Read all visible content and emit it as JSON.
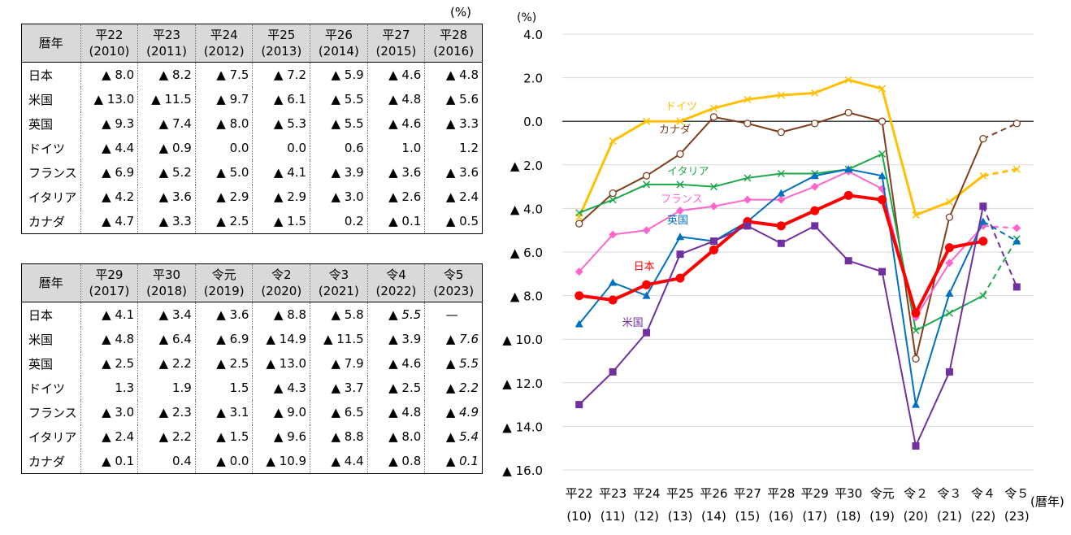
{
  "unit": "(%)",
  "tables": [
    {
      "header_label": "暦年",
      "years": [
        {
          "era": "平22",
          "year": "(2010)"
        },
        {
          "era": "平23",
          "year": "(2011)"
        },
        {
          "era": "平24",
          "year": "(2012)"
        },
        {
          "era": "平25",
          "year": "(2013)"
        },
        {
          "era": "平26",
          "year": "(2014)"
        },
        {
          "era": "平27",
          "year": "(2015)"
        },
        {
          "era": "平28",
          "year": "(2016)"
        }
      ],
      "rows": [
        {
          "country": "日本",
          "values": [
            "▲ 8.0",
            "▲ 8.2",
            "▲ 7.5",
            "▲ 7.2",
            "▲ 5.9",
            "▲ 4.6",
            "▲ 4.8"
          ]
        },
        {
          "country": "米国",
          "values": [
            "▲ 13.0",
            "▲ 11.5",
            "▲ 9.7",
            "▲ 6.1",
            "▲ 5.5",
            "▲ 4.8",
            "▲ 5.6"
          ]
        },
        {
          "country": "英国",
          "values": [
            "▲ 9.3",
            "▲ 7.4",
            "▲ 8.0",
            "▲ 5.3",
            "▲ 5.5",
            "▲ 4.6",
            "▲ 3.3"
          ]
        },
        {
          "country": "ドイツ",
          "values": [
            "▲ 4.4",
            "▲ 0.9",
            "0.0",
            "0.0",
            "0.6",
            "1.0",
            "1.2"
          ]
        },
        {
          "country": "フランス",
          "values": [
            "▲ 6.9",
            "▲ 5.2",
            "▲ 5.0",
            "▲ 4.1",
            "▲ 3.9",
            "▲ 3.6",
            "▲ 3.6"
          ]
        },
        {
          "country": "イタリア",
          "values": [
            "▲ 4.2",
            "▲ 3.6",
            "▲ 2.9",
            "▲ 2.9",
            "▲ 3.0",
            "▲ 2.6",
            "▲ 2.4"
          ]
        },
        {
          "country": "カナダ",
          "values": [
            "▲ 4.7",
            "▲ 3.3",
            "▲ 2.5",
            "▲ 1.5",
            "0.2",
            "▲ 0.1",
            "▲ 0.5"
          ]
        }
      ]
    },
    {
      "header_label": "暦年",
      "years": [
        {
          "era": "平29",
          "year": "(2017)"
        },
        {
          "era": "平30",
          "year": "(2018)"
        },
        {
          "era": "令元",
          "year": "(2019)"
        },
        {
          "era": "令2",
          "year": "(2020)"
        },
        {
          "era": "令3",
          "year": "(2021)"
        },
        {
          "era": "令4",
          "year": "(2022)"
        },
        {
          "era": "令5",
          "year": "(2023)"
        }
      ],
      "rows": [
        {
          "country": "日本",
          "values": [
            "▲ 4.1",
            "▲ 3.4",
            "▲ 3.6",
            "▲ 8.8",
            "▲ 5.8",
            "▲ 5.5",
            "—"
          ]
        },
        {
          "country": "米国",
          "values": [
            "▲ 4.8",
            "▲ 6.4",
            "▲ 6.9",
            "▲ 14.9",
            "▲ 11.5",
            "▲ 3.9",
            "▲ 7.6"
          ]
        },
        {
          "country": "英国",
          "values": [
            "▲ 2.5",
            "▲ 2.2",
            "▲ 2.5",
            "▲ 13.0",
            "▲ 7.9",
            "▲ 4.6",
            "▲ 5.5"
          ]
        },
        {
          "country": "ドイツ",
          "values": [
            "1.3",
            "1.9",
            "1.5",
            "▲ 4.3",
            "▲ 3.7",
            "▲ 2.5",
            "▲ 2.2"
          ]
        },
        {
          "country": "フランス",
          "values": [
            "▲ 3.0",
            "▲ 2.3",
            "▲ 3.1",
            "▲ 9.0",
            "▲ 6.5",
            "▲ 4.8",
            "▲ 4.9"
          ]
        },
        {
          "country": "イタリア",
          "values": [
            "▲ 2.4",
            "▲ 2.2",
            "▲ 1.5",
            "▲ 9.6",
            "▲ 8.8",
            "▲ 8.0",
            "▲ 5.4"
          ]
        },
        {
          "country": "カナダ",
          "values": [
            "▲ 0.1",
            "0.4",
            "▲ 0.0",
            "▲ 10.9",
            "▲ 4.4",
            "▲ 0.8",
            "▲ 0.1"
          ]
        }
      ],
      "italic_cells": [
        [
          0,
          5
        ],
        [
          1,
          6
        ],
        [
          2,
          6
        ],
        [
          3,
          6
        ],
        [
          4,
          6
        ],
        [
          5,
          6
        ],
        [
          6,
          6
        ]
      ]
    }
  ],
  "chart_data": {
    "type": "line",
    "ylabel": "(%)",
    "xlabel": "(暦年)",
    "ylim": [
      -16,
      4
    ],
    "yticks": [
      {
        "value": 4,
        "label": "4.0"
      },
      {
        "value": 2,
        "label": "2.0"
      },
      {
        "value": 0,
        "label": "0.0"
      },
      {
        "value": -2,
        "label": "▲ 2.0"
      },
      {
        "value": -4,
        "label": "▲ 4.0"
      },
      {
        "value": -6,
        "label": "▲ 6.0"
      },
      {
        "value": -8,
        "label": "▲ 8.0"
      },
      {
        "value": -10,
        "label": "▲ 10.0"
      },
      {
        "value": -12,
        "label": "▲ 12.0"
      },
      {
        "value": -14,
        "label": "▲ 14.0"
      },
      {
        "value": -16,
        "label": "▲ 16.0"
      }
    ],
    "categories": [
      {
        "era": "平22",
        "year": "(10)"
      },
      {
        "era": "平23",
        "year": "(11)"
      },
      {
        "era": "平24",
        "year": "(12)"
      },
      {
        "era": "平25",
        "year": "(13)"
      },
      {
        "era": "平26",
        "year": "(14)"
      },
      {
        "era": "平27",
        "year": "(15)"
      },
      {
        "era": "平28",
        "year": "(16)"
      },
      {
        "era": "平29",
        "year": "(17)"
      },
      {
        "era": "平30",
        "year": "(18)"
      },
      {
        "era": "令元",
        "year": "(19)"
      },
      {
        "era": "令２",
        "year": "(20)"
      },
      {
        "era": "令３",
        "year": "(21)"
      },
      {
        "era": "令４",
        "year": "(22)"
      },
      {
        "era": "令５",
        "year": "(23)"
      }
    ],
    "series": [
      {
        "name": "ドイツ",
        "color": "#ffc000",
        "marker": "x",
        "width": 3,
        "values": [
          -4.4,
          -0.9,
          0.0,
          0.0,
          0.6,
          1.0,
          1.2,
          1.3,
          1.9,
          1.5,
          -4.3,
          -3.7,
          -2.5,
          -2.2
        ],
        "solid_until": 12,
        "label_anchor": 3
      },
      {
        "name": "カナダ",
        "color": "#7f3f1f",
        "marker": "circle-open",
        "width": 2,
        "values": [
          -4.7,
          -3.3,
          -2.5,
          -1.5,
          0.2,
          -0.1,
          -0.5,
          -0.1,
          0.4,
          0.0,
          -10.9,
          -4.4,
          -0.8,
          -0.1
        ],
        "solid_until": 12,
        "label_anchor": 3
      },
      {
        "name": "イタリア",
        "color": "#1ea84b",
        "marker": "x",
        "width": 2,
        "values": [
          -4.2,
          -3.6,
          -2.9,
          -2.9,
          -3.0,
          -2.6,
          -2.4,
          -2.4,
          -2.2,
          -1.5,
          -9.6,
          -8.8,
          -8.0,
          -5.4
        ],
        "solid_until": 12,
        "label_anchor": 3
      },
      {
        "name": "フランス",
        "color": "#ff66cc",
        "marker": "diamond",
        "width": 2,
        "values": [
          -6.9,
          -5.2,
          -5.0,
          -4.1,
          -3.9,
          -3.6,
          -3.6,
          -3.0,
          -2.3,
          -3.1,
          -9.0,
          -6.5,
          -4.8,
          -4.9
        ],
        "solid_until": 12,
        "label_anchor": 3
      },
      {
        "name": "英国",
        "color": "#0070c0",
        "marker": "triangle",
        "width": 2,
        "values": [
          -9.3,
          -7.4,
          -8.0,
          -5.3,
          -5.5,
          -4.6,
          -3.3,
          -2.5,
          -2.2,
          -2.5,
          -13.0,
          -7.9,
          -4.6,
          -5.5
        ],
        "solid_until": 12,
        "label_anchor": 3
      },
      {
        "name": "日本",
        "color": "#ff0000",
        "marker": "circle",
        "width": 4,
        "values": [
          -8.0,
          -8.2,
          -7.5,
          -7.2,
          -5.9,
          -4.6,
          -4.8,
          -4.1,
          -3.4,
          -3.6,
          -8.8,
          -5.8,
          -5.5,
          null
        ],
        "solid_until": 12,
        "label_anchor": 2
      },
      {
        "name": "米国",
        "color": "#7030a0",
        "marker": "square",
        "width": 2,
        "values": [
          -13.0,
          -11.5,
          -9.7,
          -6.1,
          -5.5,
          -4.8,
          -5.6,
          -4.8,
          -6.4,
          -6.9,
          -14.9,
          -11.5,
          -3.9,
          -7.6
        ],
        "solid_until": 12,
        "label_anchor": 2
      }
    ]
  }
}
